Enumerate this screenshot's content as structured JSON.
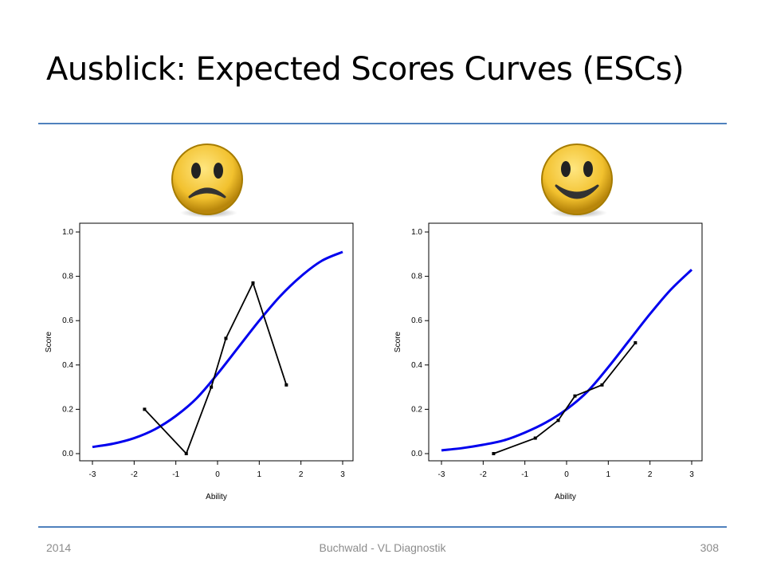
{
  "slide": {
    "title": "Ausblick: Expected Scores Curves (ESCs)",
    "footer_left": "2014",
    "footer_center": "Buchwald - VL Diagnostik",
    "footer_right": "308"
  },
  "icons": [
    "sad-face-icon",
    "happy-face-icon"
  ],
  "colors": {
    "curve": "#0000ee",
    "observed": "#000000",
    "rule": "#4f81bd",
    "smiley_fill": "#f2c12e"
  },
  "chart_data": [
    {
      "type": "line",
      "xlabel": "Ability",
      "ylabel": "Score",
      "xlim": [
        -3,
        3
      ],
      "ylim": [
        0,
        1
      ],
      "xticks": [
        "-3",
        "-2",
        "-1",
        "0",
        "1",
        "2",
        "3"
      ],
      "yticks": [
        "0.0",
        "0.2",
        "0.4",
        "0.6",
        "0.8",
        "1.0"
      ],
      "series": [
        {
          "role": "expected",
          "x": [
            -3,
            -2.5,
            -2,
            -1.5,
            -1,
            -0.5,
            0,
            0.5,
            1,
            1.5,
            2,
            2.5,
            3
          ],
          "y": [
            0.03,
            0.045,
            0.07,
            0.11,
            0.17,
            0.25,
            0.36,
            0.48,
            0.6,
            0.71,
            0.8,
            0.87,
            0.91
          ]
        },
        {
          "role": "observed",
          "x": [
            -1.75,
            -0.75,
            -0.15,
            0.2,
            0.85,
            1.65
          ],
          "y": [
            0.2,
            0.0,
            0.3,
            0.52,
            0.77,
            0.31
          ]
        }
      ]
    },
    {
      "type": "line",
      "xlabel": "Ability",
      "ylabel": "Score",
      "xlim": [
        -3,
        3
      ],
      "ylim": [
        0,
        1
      ],
      "xticks": [
        "-3",
        "-2",
        "-1",
        "0",
        "1",
        "2",
        "3"
      ],
      "yticks": [
        "0.0",
        "0.2",
        "0.4",
        "0.6",
        "0.8",
        "1.0"
      ],
      "series": [
        {
          "role": "expected",
          "x": [
            -3,
            -2.5,
            -2,
            -1.5,
            -1,
            -0.5,
            0,
            0.5,
            1,
            1.5,
            2,
            2.5,
            3
          ],
          "y": [
            0.015,
            0.025,
            0.04,
            0.06,
            0.095,
            0.14,
            0.2,
            0.28,
            0.39,
            0.51,
            0.63,
            0.74,
            0.83
          ]
        },
        {
          "role": "observed",
          "x": [
            -1.75,
            -0.75,
            -0.2,
            0.2,
            0.85,
            1.65
          ],
          "y": [
            0.0,
            0.07,
            0.15,
            0.26,
            0.31,
            0.5
          ]
        }
      ]
    }
  ]
}
